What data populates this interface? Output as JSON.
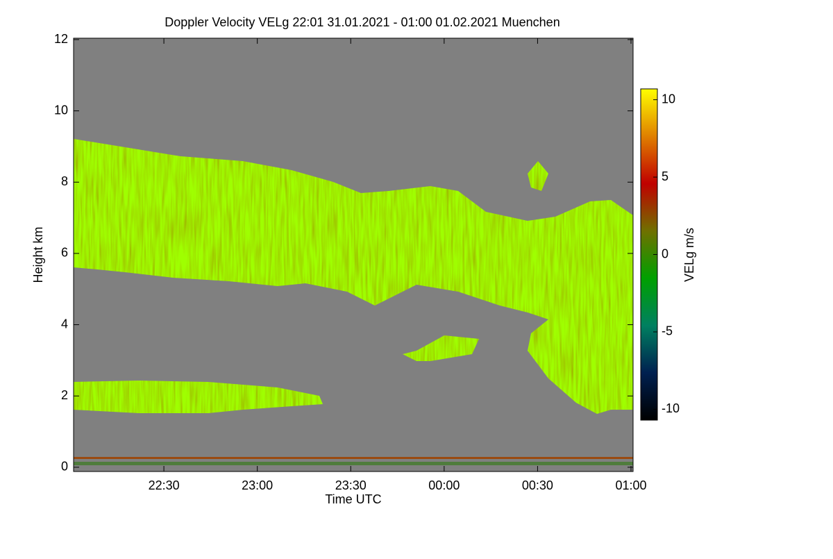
{
  "chart_data": {
    "type": "heatmap",
    "title": "Doppler Velocity VELg   22:01 31.01.2021 - 01:00 01.02.2021 Muenchen",
    "x_label": "Time UTC",
    "y_label": "Height km",
    "xlim": [
      22.0167,
      25.0
    ],
    "xticks": [
      {
        "value": 22.5,
        "label": "22:30"
      },
      {
        "value": 23.0,
        "label": "23:00"
      },
      {
        "value": 23.5,
        "label": "23:30"
      },
      {
        "value": 24.0,
        "label": "00:00"
      },
      {
        "value": 24.5,
        "label": "00:30"
      },
      {
        "value": 25.0,
        "label": "01:00"
      }
    ],
    "ylim": [
      -0.1,
      12
    ],
    "yticks": [
      0,
      2,
      4,
      6,
      8,
      10,
      12
    ],
    "background": "#808080",
    "colorbar": {
      "label": "VELg m/s",
      "lim": [
        -10.7,
        10.7
      ],
      "ticks": [
        -10,
        -5,
        0,
        5,
        10
      ],
      "colors": [
        "#000000",
        "#002050",
        "#008060",
        "#00a000",
        "#707000",
        "#c00000",
        "#e08000",
        "#ffff00"
      ]
    }
  }
}
